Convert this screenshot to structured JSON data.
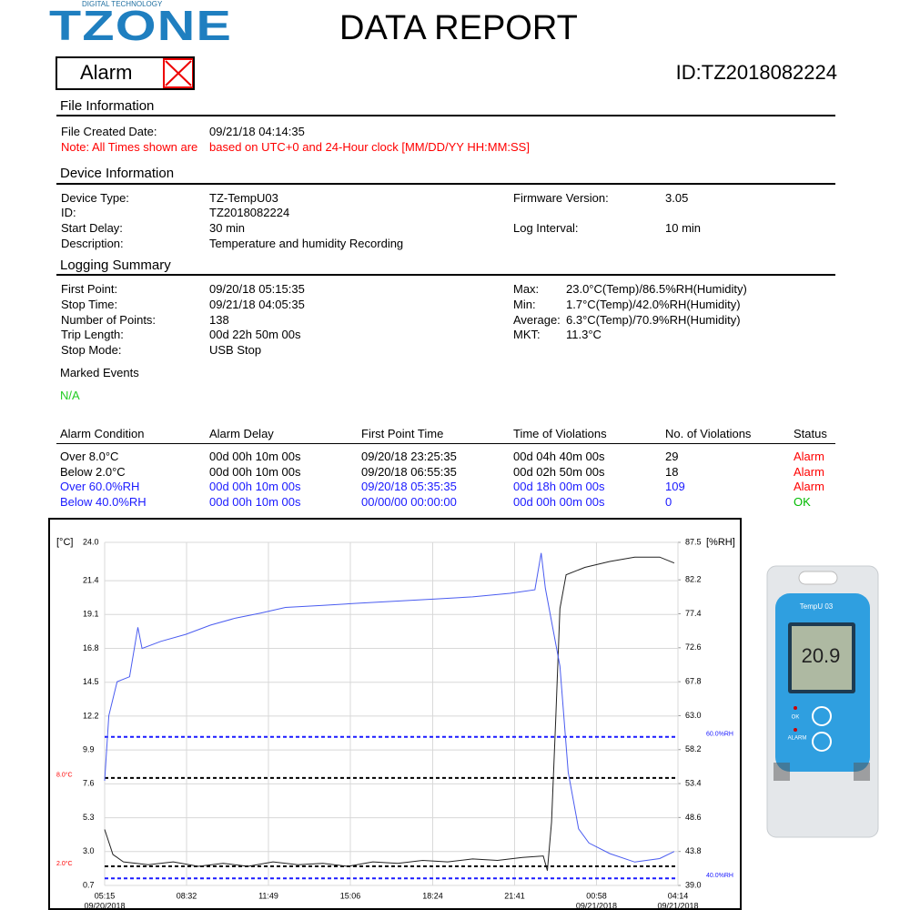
{
  "header": {
    "logo": "TZONE",
    "logo_tagline": "DIGITAL TECHNOLOGY",
    "title": "DATA REPORT",
    "status": "Alarm",
    "id": "ID:TZ2018082224"
  },
  "file_information": {
    "heading": "File Information",
    "rows": [
      [
        "File Created Date:",
        "09/21/18 04:14:35"
      ]
    ],
    "note": [
      "Note: All Times shown are",
      "based on UTC+0 and 24-Hour clock [MM/DD/YY HH:MM:SS]"
    ]
  },
  "device_information": {
    "heading": "Device Information",
    "left": [
      [
        "Device Type:",
        "TZ-TempU03"
      ],
      [
        "ID:",
        "TZ2018082224"
      ],
      [
        "Start Delay:",
        "30 min"
      ],
      [
        "Description:",
        "Temperature and humidity Recording"
      ]
    ],
    "right": [
      [
        "Firmware Version:",
        "3.05"
      ],
      [
        "Log Interval:",
        "10 min"
      ]
    ]
  },
  "logging_summary": {
    "heading": "Logging Summary",
    "left": [
      [
        "First Point:",
        "09/20/18 05:15:35"
      ],
      [
        "Stop Time:",
        "09/21/18 04:05:35"
      ],
      [
        "Number of Points:",
        "138"
      ],
      [
        "Trip Length:",
        "00d 22h 50m 00s"
      ],
      [
        "Stop Mode:",
        "USB Stop"
      ]
    ],
    "right": [
      [
        "Max:",
        "23.0°C(Temp)/86.5%RH(Humidity)"
      ],
      [
        "Min:",
        "1.7°C(Temp)/42.0%RH(Humidity)"
      ],
      [
        "Average:",
        "6.3°C(Temp)/70.9%RH(Humidity)"
      ],
      [
        "MKT:",
        "11.3°C"
      ]
    ]
  },
  "marked_events": {
    "heading": "Marked Events",
    "value": "N/A",
    "color": "#22cc22"
  },
  "alarm_table": {
    "columns": [
      "Alarm Condition",
      "Alarm Delay",
      "First Point Time",
      "Time of Violations",
      "No. of Violations",
      "Status"
    ],
    "rows": [
      [
        "Over 8.0°C",
        "00d 00h 10m 00s",
        "09/20/18 23:25:35",
        "00d 04h 40m 00s",
        "29",
        "Alarm"
      ],
      [
        "Below 2.0°C",
        "00d 00h 10m 00s",
        "09/20/18 06:55:35",
        "00d 02h 50m 00s",
        "18",
        "Alarm"
      ],
      [
        "Over 60.0%RH",
        "00d 00h 10m 00s",
        "09/20/18 05:35:35",
        "00d 18h 00m 00s",
        "109",
        "Alarm"
      ],
      [
        "Below 40.0%RH",
        "00d 00h 10m 00s",
        "00/00/00 00:00:00",
        "00d 00h 00m 00s",
        "0",
        "OK"
      ]
    ],
    "row_colors": [
      "#000000",
      "#000000",
      "#1a1aff",
      "#1a1aff"
    ],
    "status_colors": [
      "#ff0000",
      "#ff0000",
      "#ff0000",
      "#00bb00"
    ]
  },
  "chart_data": {
    "type": "line",
    "ylabel": "[°C]",
    "y2label": "[%RH]",
    "xlim": [
      "09/20/2018 05:15",
      "09/21/2018 04:14"
    ],
    "xticks": [
      {
        "value": "09/20/2018 05:15",
        "label": "05:15"
      },
      {
        "value": "09/20/2018 08:32",
        "label": "08:32"
      },
      {
        "value": "09/20/2018 11:49",
        "label": "11:49"
      },
      {
        "value": "09/20/2018 15:06",
        "label": "15:06"
      },
      {
        "value": "09/20/2018 18:24",
        "label": "18:24"
      },
      {
        "value": "09/20/2018 21:41",
        "label": "21:41"
      },
      {
        "value": "09/21/2018 00:58",
        "label": "00:58"
      },
      {
        "value": "09/21/2018 04:14",
        "label": "04:14"
      }
    ],
    "xtick_dates": [
      "09/20/2018",
      null,
      null,
      null,
      null,
      null,
      "09/21/2018",
      "09/21/2018"
    ],
    "ylim": [
      0.7,
      24
    ],
    "yticks": [
      {
        "value": 24,
        "label": "24.0"
      },
      21.4,
      19.1,
      16.8,
      14.5,
      12.2,
      9.9,
      7.6,
      5.3,
      {
        "value": 3,
        "label": "3.0"
      },
      0.7
    ],
    "y2lim": [
      39,
      87.5
    ],
    "y2ticks": [
      87.5,
      82.2,
      77.4,
      72.6,
      67.8,
      {
        "value": 63,
        "label": "63.0"
      },
      58.2,
      53.4,
      48.6,
      43.8,
      {
        "value": 39,
        "label": "39.0"
      }
    ],
    "grid": true,
    "series": [
      {
        "color": "#222222",
        "axis": "y",
        "x": [
          "09/20/2018 05:15",
          "09/20/2018 05:35",
          "09/20/2018 06:00",
          "09/20/2018 07:00",
          "09/20/2018 08:00",
          "09/20/2018 09:00",
          "09/20/2018 10:00",
          "09/20/2018 11:00",
          "09/20/2018 12:00",
          "09/20/2018 13:00",
          "09/20/2018 14:00",
          "09/20/2018 15:00",
          "09/20/2018 16:00",
          "09/20/2018 17:00",
          "09/20/2018 18:00",
          "09/20/2018 19:00",
          "09/20/2018 20:00",
          "09/20/2018 21:00",
          "09/20/2018 22:00",
          "09/20/2018 22:50",
          "09/20/2018 23:00",
          "09/20/2018 23:10",
          "09/20/2018 23:20",
          "09/20/2018 23:30",
          "09/20/2018 23:45",
          "09/21/2018 00:30",
          "09/21/2018 01:30",
          "09/21/2018 02:30",
          "09/21/2018 03:30",
          "09/21/2018 04:05"
        ],
        "values": [
          4.5,
          2.8,
          2.3,
          2.1,
          2.3,
          2.0,
          2.2,
          2.0,
          2.3,
          2.1,
          2.2,
          2.0,
          2.3,
          2.2,
          2.4,
          2.3,
          2.5,
          2.4,
          2.6,
          2.7,
          1.7,
          5.0,
          12.0,
          19.5,
          21.8,
          22.3,
          22.7,
          23.0,
          23.0,
          22.6
        ]
      },
      {
        "color": "#4a5cf0",
        "axis": "y2",
        "x": [
          "09/20/2018 05:15",
          "09/20/2018 05:25",
          "09/20/2018 05:45",
          "09/20/2018 06:15",
          "09/20/2018 06:35",
          "09/20/2018 06:45",
          "09/20/2018 07:30",
          "09/20/2018 08:30",
          "09/20/2018 09:30",
          "09/20/2018 10:30",
          "09/20/2018 11:30",
          "09/20/2018 12:30",
          "09/20/2018 14:00",
          "09/20/2018 15:30",
          "09/20/2018 17:00",
          "09/20/2018 18:30",
          "09/20/2018 20:00",
          "09/20/2018 21:30",
          "09/20/2018 22:30",
          "09/20/2018 22:45",
          "09/20/2018 22:55",
          "09/20/2018 23:30",
          "09/20/2018 23:50",
          "09/21/2018 00:15",
          "09/21/2018 00:40",
          "09/21/2018 01:30",
          "09/21/2018 02:30",
          "09/21/2018 03:30",
          "09/21/2018 04:05"
        ],
        "values": [
          53.8,
          63.0,
          67.8,
          68.5,
          75.5,
          72.5,
          73.5,
          74.5,
          75.8,
          76.8,
          77.5,
          78.3,
          78.6,
          78.9,
          79.2,
          79.5,
          79.8,
          80.3,
          80.8,
          86.0,
          81.0,
          70.0,
          55.0,
          47.0,
          45.0,
          43.5,
          42.3,
          42.8,
          43.8
        ]
      }
    ],
    "thresholds": [
      {
        "label": "8.0°C",
        "value": 8,
        "axis": "y",
        "color": "#000000",
        "label_color": "#ff0000"
      },
      {
        "label": "2.0°C",
        "value": 2,
        "axis": "y",
        "color": "#000000",
        "label_color": "#ff0000"
      },
      {
        "label": "60.0%RH",
        "value": 60,
        "axis": "y2",
        "color": "#1a1aff",
        "label_color": "#1a1aff"
      },
      {
        "label": "40.0%RH",
        "value": 40,
        "axis": "y2",
        "color": "#1a1aff",
        "label_color": "#1a1aff"
      }
    ]
  },
  "device": {
    "model": "TempU 03",
    "display": "20.9",
    "ok": "OK",
    "alarm": "ALARM"
  }
}
